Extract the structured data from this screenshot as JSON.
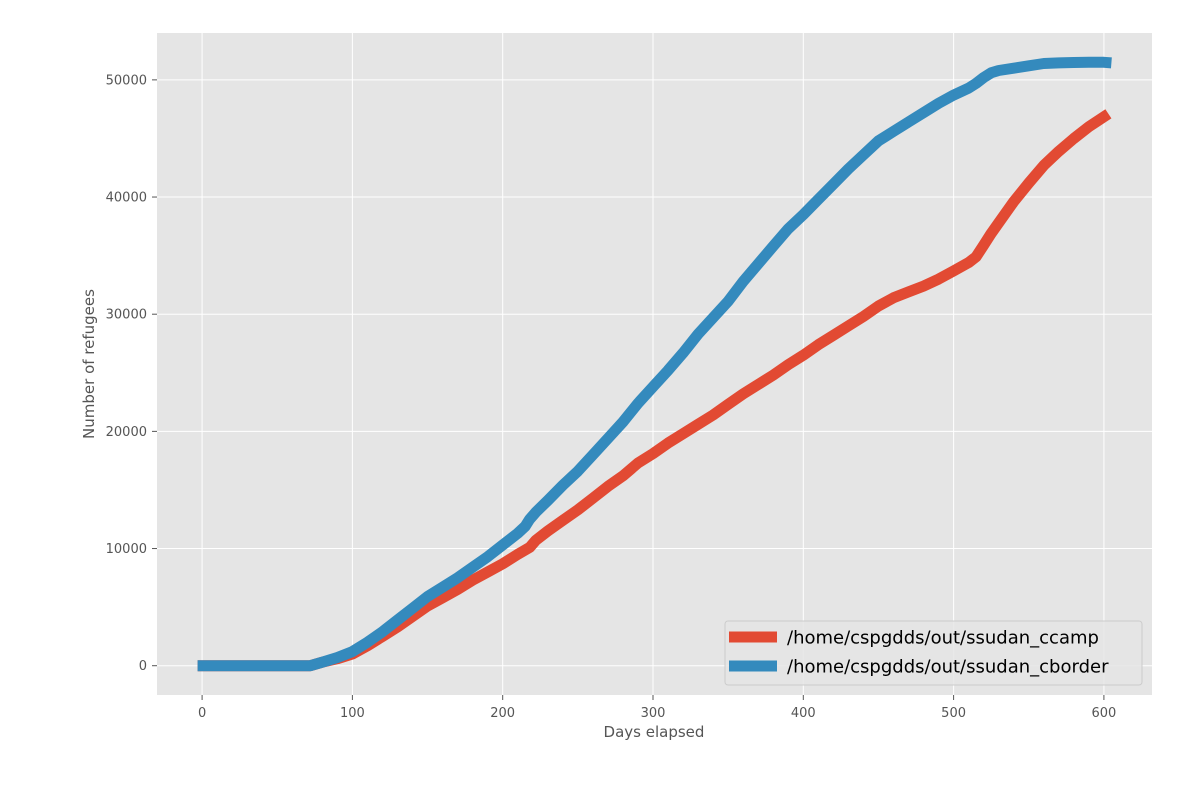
{
  "chart_data": {
    "type": "line",
    "title": "",
    "xlabel": "Days elapsed",
    "ylabel": "Number of refugees",
    "xlim": [
      -30,
      632
    ],
    "ylim": [
      -2500,
      54000
    ],
    "xticks": [
      0,
      100,
      200,
      300,
      400,
      500,
      600
    ],
    "yticks": [
      0,
      10000,
      20000,
      30000,
      40000,
      50000
    ],
    "grid": true,
    "legend_position": "lower-right",
    "colors": {
      "plot_background": "#e5e5e5",
      "grid": "#ffffff",
      "tick_text": "#555555"
    },
    "series": [
      {
        "name": "/home/cspgdds/out/ssudan_ccamp",
        "color": "#e24a33",
        "x": [
          -3,
          72,
          80,
          90,
          100,
          110,
          120,
          130,
          140,
          150,
          160,
          170,
          180,
          190,
          200,
          210,
          218,
          222,
          230,
          240,
          250,
          260,
          270,
          280,
          290,
          300,
          310,
          320,
          330,
          340,
          350,
          360,
          370,
          380,
          390,
          400,
          410,
          420,
          430,
          440,
          450,
          460,
          470,
          480,
          490,
          500,
          510,
          515,
          520,
          525,
          530,
          540,
          550,
          560,
          570,
          580,
          590,
          603
        ],
        "y": [
          0,
          0,
          300,
          600,
          1000,
          1700,
          2500,
          3300,
          4200,
          5100,
          5800,
          6500,
          7300,
          8000,
          8700,
          9500,
          10100,
          10700,
          11500,
          12400,
          13300,
          14300,
          15300,
          16200,
          17300,
          18100,
          19000,
          19800,
          20600,
          21400,
          22300,
          23200,
          24000,
          24800,
          25700,
          26500,
          27400,
          28200,
          29000,
          29800,
          30700,
          31400,
          31900,
          32400,
          33000,
          33700,
          34400,
          34900,
          35900,
          36900,
          37800,
          39600,
          41200,
          42700,
          43900,
          45000,
          46000,
          47100
        ]
      },
      {
        "name": "/home/cspgdds/out/ssudan_cborder",
        "color": "#348abd",
        "x": [
          -3,
          72,
          80,
          90,
          100,
          110,
          120,
          130,
          140,
          150,
          160,
          170,
          180,
          190,
          200,
          210,
          215,
          218,
          222,
          230,
          240,
          250,
          260,
          270,
          280,
          290,
          300,
          310,
          320,
          330,
          340,
          350,
          360,
          370,
          380,
          390,
          400,
          410,
          420,
          430,
          440,
          450,
          460,
          470,
          480,
          490,
          500,
          510,
          515,
          520,
          525,
          530,
          540,
          550,
          560,
          570,
          580,
          590,
          600,
          605
        ],
        "y": [
          0,
          0,
          300,
          700,
          1200,
          2000,
          2900,
          3900,
          4900,
          5900,
          6700,
          7500,
          8400,
          9300,
          10300,
          11300,
          11900,
          12500,
          13100,
          14100,
          15400,
          16600,
          18000,
          19400,
          20800,
          22400,
          23800,
          25200,
          26700,
          28300,
          29700,
          31100,
          32800,
          34300,
          35800,
          37300,
          38500,
          39800,
          41100,
          42400,
          43600,
          44800,
          45600,
          46400,
          47200,
          48000,
          48700,
          49300,
          49700,
          50200,
          50600,
          50800,
          51000,
          51200,
          51400,
          51450,
          51480,
          51500,
          51500,
          51450
        ]
      }
    ]
  }
}
